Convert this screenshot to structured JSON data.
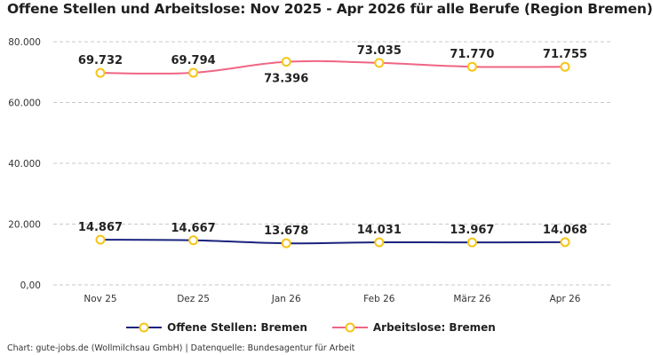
{
  "title": "Offene Stellen und Arbeitslose: Nov 2025 - Apr 2026 für alle Berufe (Region Bremen)",
  "source": "Chart: gute-jobs.de (Wollmilchsau GmbH) | Datenquelle: Bundesagentur für Arbeit",
  "chart_data": {
    "type": "line",
    "title": "Offene Stellen und Arbeitslose: Nov 2025 - Apr 2026 für alle Berufe (Region Bremen)",
    "categories": [
      "Nov 25",
      "Dez 25",
      "Jan 26",
      "Feb 26",
      "März 26",
      "Apr 26"
    ],
    "ylim": [
      0,
      80000
    ],
    "yticks": [
      "0,00",
      "20.000",
      "40.000",
      "60.000",
      "80.000"
    ],
    "grid": true,
    "legend_position": "bottom",
    "series": [
      {
        "name": "Offene Stellen: Bremen",
        "color": "#1a237e",
        "values": [
          14867,
          14667,
          13678,
          14031,
          13967,
          14068
        ],
        "labels": [
          "14.867",
          "14.667",
          "13.678",
          "14.031",
          "13.967",
          "14.068"
        ]
      },
      {
        "name": "Arbeitslose: Bremen",
        "color": "#f06584",
        "values": [
          69732,
          69794,
          73396,
          73035,
          71770,
          71755
        ],
        "labels": [
          "69.732",
          "69.794",
          "73.396",
          "73.035",
          "71.770",
          "71.755"
        ]
      }
    ],
    "marker_color": "#f5c518"
  }
}
